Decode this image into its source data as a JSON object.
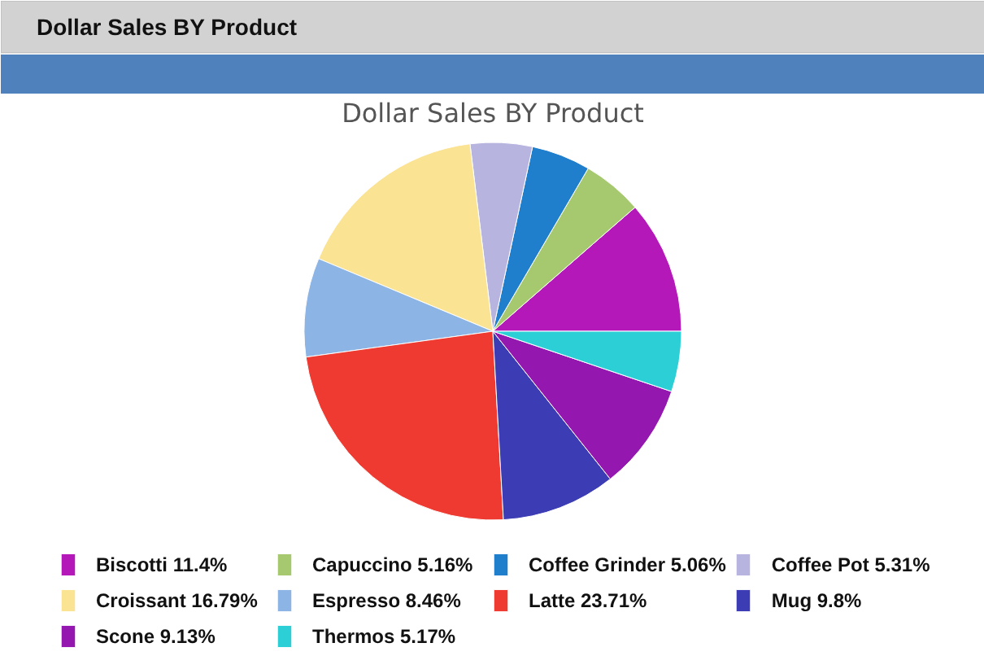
{
  "chart_data": {
    "type": "pie",
    "title": "Dollar Sales BY Product",
    "annotations": [
      "Dollar Sales BY Product"
    ],
    "categories": [
      "Biscotti",
      "Capuccino",
      "Coffee Grinder",
      "Coffee Pot",
      "Croissant",
      "Espresso",
      "Latte",
      "Mug",
      "Scone",
      "Thermos"
    ],
    "values": [
      11.4,
      5.16,
      5.06,
      5.31,
      16.79,
      8.46,
      23.71,
      9.8,
      9.13,
      5.17
    ],
    "value_labels": [
      "11.4%",
      "5.16%",
      "5.06%",
      "5.31%",
      "16.79%",
      "8.46%",
      "23.71%",
      "9.8%",
      "9.13%",
      "5.17%"
    ],
    "colors": [
      "#b418b8",
      "#a6c86e",
      "#1f7fcc",
      "#b8b4e0",
      "#fbe394",
      "#8cb4e4",
      "#ee3a30",
      "#3c3cb4",
      "#9418b0",
      "#2ccfd6"
    ],
    "legend": "bottom"
  }
}
